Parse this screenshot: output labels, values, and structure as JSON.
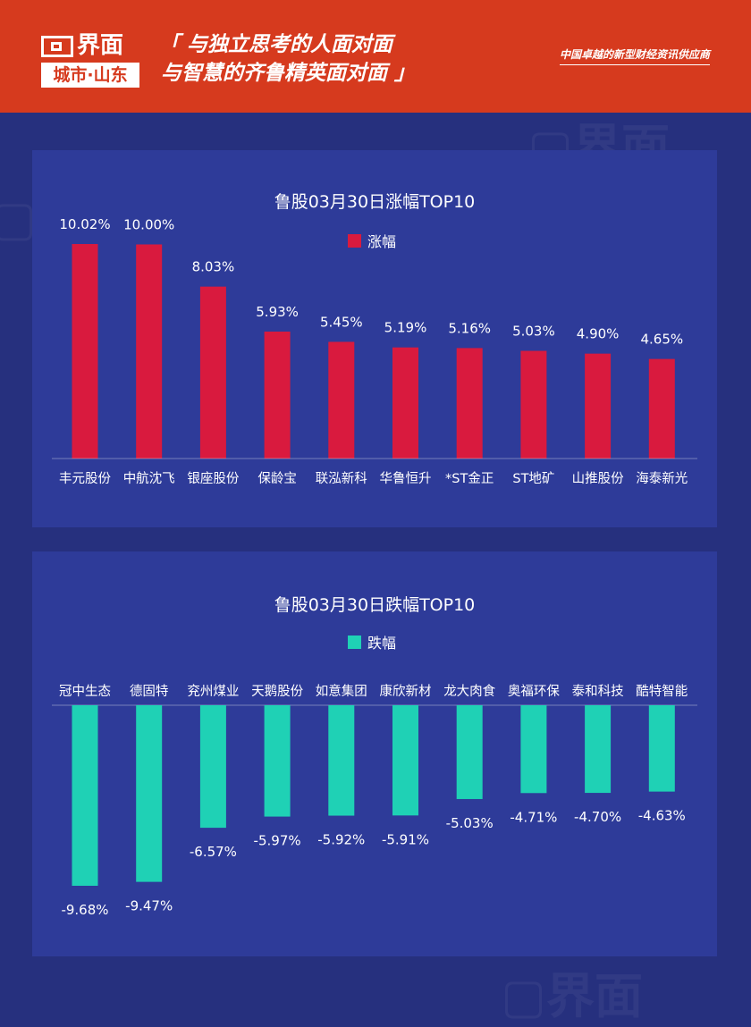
{
  "header": {
    "logo_main": "界面",
    "logo_sub": "城市·山东",
    "slogan_line1": "「 与独立思考的人面对面",
    "slogan_line2": "与智慧的齐鲁精英面对面 」",
    "tagline": "中国卓越的新型财经资讯供应商"
  },
  "colors": {
    "header_bg": "#d63a1e",
    "page_bg": "#26307e",
    "panel_bg": "#2e3b99",
    "rise_bar": "#d91a3e",
    "fall_bar": "#1fd1b5"
  },
  "chart_data": [
    {
      "type": "bar",
      "title": "鲁股03月30日涨幅TOP10",
      "series": [
        {
          "name": "涨幅",
          "values": [
            10.02,
            10.0,
            8.03,
            5.93,
            5.45,
            5.19,
            5.16,
            5.03,
            4.9,
            4.65
          ],
          "labels": [
            "10.02%",
            "10.00%",
            "8.03%",
            "5.93%",
            "5.45%",
            "5.19%",
            "5.16%",
            "5.03%",
            "4.90%",
            "4.65%"
          ]
        }
      ],
      "categories": [
        "丰元股份",
        "中航沈飞",
        "银座股份",
        "保龄宝",
        "联泓新科",
        "华鲁恒升",
        "*ST金正",
        "ST地矿",
        "山推股份",
        "海泰新光"
      ],
      "ylim": [
        0,
        10.02
      ],
      "legend": "top-center",
      "grid": false
    },
    {
      "type": "bar",
      "title": "鲁股03月30日跌幅TOP10",
      "series": [
        {
          "name": "跌幅",
          "values": [
            -9.68,
            -9.47,
            -6.57,
            -5.97,
            -5.92,
            -5.91,
            -5.03,
            -4.71,
            -4.7,
            -4.63
          ],
          "labels": [
            "-9.68%",
            "-9.47%",
            "-6.57%",
            "-5.97%",
            "-5.92%",
            "-5.91%",
            "-5.03%",
            "-4.71%",
            "-4.70%",
            "-4.63%"
          ]
        }
      ],
      "categories": [
        "冠中生态",
        "德固特",
        "兖州煤业",
        "天鹅股份",
        "如意集团",
        "康欣新材",
        "龙大肉食",
        "奥福环保",
        "泰和科技",
        "酷特智能"
      ],
      "ylim": [
        -9.68,
        0
      ],
      "legend": "top-center",
      "grid": false
    }
  ]
}
